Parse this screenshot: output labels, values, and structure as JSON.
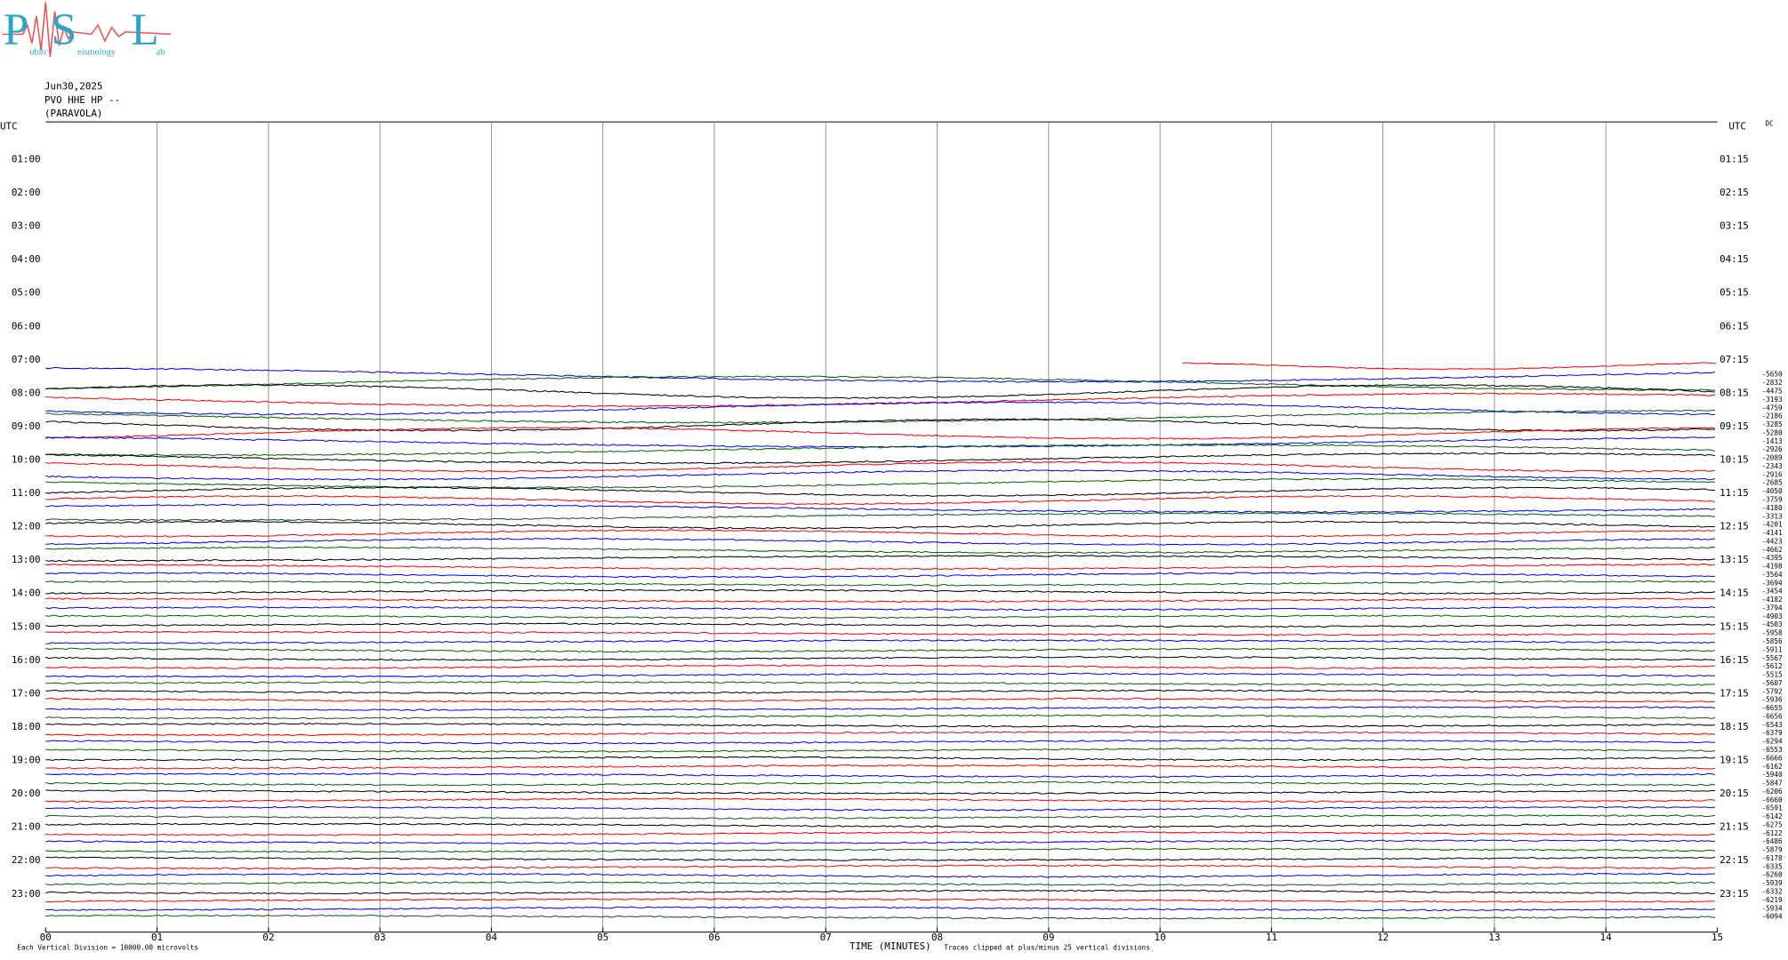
{
  "logo": {
    "p": "P",
    "s": "S",
    "l": "L",
    "word1": "ublic",
    "word2": "eismology",
    "word3": "ab"
  },
  "header": {
    "date": "Jun30,2025",
    "station": "PVO HHE HP --",
    "location": "(PARAVOLA)"
  },
  "axis": {
    "left_title": "UTC",
    "right_title": "UTC",
    "dc_title": "DC",
    "left_labels": [
      "01:00",
      "02:00",
      "03:00",
      "04:00",
      "05:00",
      "06:00",
      "07:00",
      "08:00",
      "09:00",
      "10:00",
      "11:00",
      "12:00",
      "13:00",
      "14:00",
      "15:00",
      "16:00",
      "17:00",
      "18:00",
      "19:00",
      "20:00",
      "21:00",
      "22:00",
      "23:00"
    ],
    "right_labels": [
      "01:15",
      "02:15",
      "03:15",
      "04:15",
      "05:15",
      "06:15",
      "07:15",
      "08:15",
      "09:15",
      "10:15",
      "11:15",
      "12:15",
      "13:15",
      "14:15",
      "15:15",
      "16:15",
      "17:15",
      "18:15",
      "19:15",
      "20:15",
      "21:15",
      "22:15",
      "23:15"
    ],
    "minutes": [
      "00",
      "01",
      "02",
      "03",
      "04",
      "05",
      "06",
      "07",
      "08",
      "09",
      "10",
      "11",
      "12",
      "13",
      "14",
      "15"
    ],
    "x_title": "TIME (MINUTES)"
  },
  "footer": {
    "scale": "Each Vertical Division = 10000.00 microvolts",
    "clip": "Traces clipped at plus/minus 25 vertical divisions"
  },
  "trace_colors": [
    "#0000ff",
    "#006400",
    "#000000",
    "#ff0000"
  ],
  "dc_offsets": [
    "-5650",
    "-2832",
    "-4475",
    "-3193",
    "-4759",
    "-2186",
    "-3285",
    "-5280",
    "-1413",
    "-2926",
    "-2089",
    "-2343",
    "-2916",
    "-2685",
    "-4050",
    "-3759",
    "-4180",
    "-3313",
    "-4201",
    "-4141",
    "-4423",
    "-4662",
    "-4395",
    "-4198",
    "-3564",
    "-3694",
    "-3454",
    "-4182",
    "-3794",
    "-4903",
    "-4503",
    "-5958",
    "-5856",
    "-5911",
    "-5567",
    "-5612",
    "-5515",
    "-5607",
    "-5792",
    "-5936",
    "-6655",
    "-6656",
    "-6543",
    "-6379",
    "-6294",
    "-6553",
    "-6666",
    "-6162",
    "-5940",
    "-5847",
    "-6206",
    "-6660",
    "-6591",
    "-6142",
    "-6275",
    "-6122",
    "-6486",
    "-5879",
    "-6178",
    "-6335",
    "-6260",
    "-5939",
    "-6332",
    "-6219",
    "-5934",
    "-6094"
  ]
}
